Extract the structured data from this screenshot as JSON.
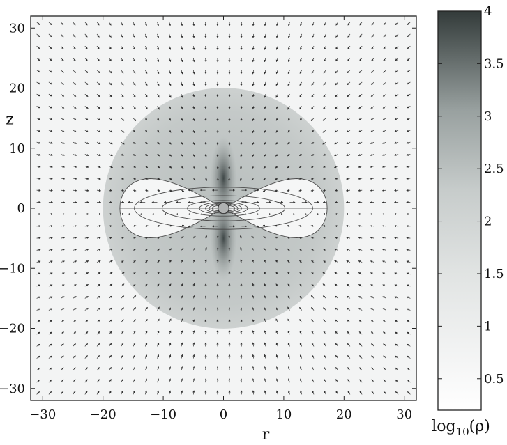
{
  "chart_data": {
    "type": "heatmap",
    "title": "",
    "xlabel": "r",
    "ylabel": "z",
    "xlim": [
      -32,
      32
    ],
    "ylim": [
      -32,
      32
    ],
    "x_ticks": [
      -30,
      -20,
      -10,
      0,
      10,
      20,
      30
    ],
    "y_ticks": [
      -30,
      -20,
      -10,
      0,
      10,
      20,
      30
    ],
    "x_tick_labels": [
      "−30",
      "−20",
      "−10",
      "0",
      "10",
      "20",
      "30"
    ],
    "y_tick_labels": [
      "−30",
      "−20",
      "−10",
      "0",
      "10",
      "20",
      "30"
    ],
    "grid": false,
    "colorbar": {
      "label": "log10(ρ)",
      "label_main": "log",
      "label_sub": "10",
      "label_tail": "(ρ)",
      "range": [
        0.2,
        4
      ],
      "ticks": [
        0.5,
        1,
        1.5,
        2,
        2.5,
        3,
        3.5,
        4
      ],
      "tick_labels": [
        "0.5",
        "1",
        "1.5",
        "2",
        "2.5",
        "3",
        "3.5",
        "4"
      ],
      "colormap": [
        "#ffffff",
        "#dfe2e1",
        "#333b3a"
      ]
    },
    "density_regions": [
      {
        "name": "background",
        "log_rho": 0.9
      },
      {
        "name": "outer-sphere",
        "radius": 20,
        "log_rho": 1.9
      },
      {
        "name": "inner-torus",
        "extent_r": 17,
        "log_rho": 0.6
      },
      {
        "name": "polar-cusp",
        "log_rho": 3.6
      }
    ],
    "contour_levels": [
      {
        "r_extent": 17.2,
        "z_extent": 7.3
      },
      {
        "r_extent": 14.8,
        "z_extent": 3.5
      },
      {
        "r_extent": 10.2,
        "z_extent": 2.1
      },
      {
        "r_extent": 6.0,
        "z_extent": 1.3
      },
      {
        "r_extent": 4.0,
        "z_extent": 1.0
      },
      {
        "r_extent": 3.0,
        "z_extent": 0.8
      },
      {
        "r_extent": 2.4,
        "z_extent": 0.65
      },
      {
        "r_extent": 1.9,
        "z_extent": 0.5
      }
    ],
    "central_body": {
      "r": 0,
      "z": 0,
      "radius": 0.9,
      "color": "#b0b2b2"
    },
    "vector_field": {
      "grid_step": 2,
      "range": [
        -31,
        31
      ],
      "description": "velocity arrows, outflow along equator inside |r|<17, inflow elsewhere"
    }
  }
}
